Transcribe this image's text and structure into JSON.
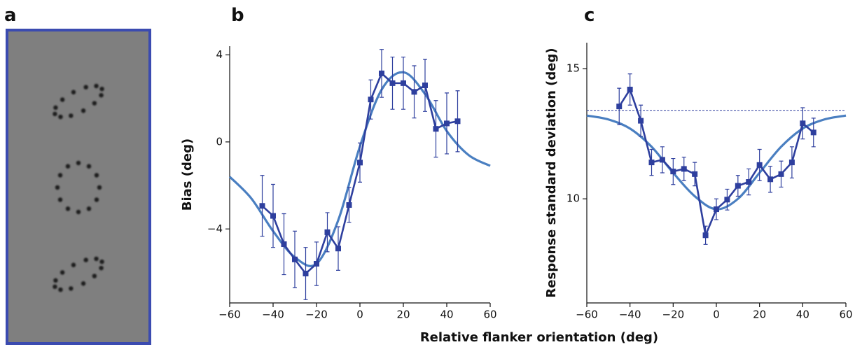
{
  "panel_labels": [
    "a",
    "b",
    "c"
  ],
  "x_label": "Relative flanker orientation (deg)",
  "chart_data": [
    {
      "type": "line",
      "y_label": "Bias (deg)",
      "xlim": [
        -60,
        60
      ],
      "xticks": [
        {
          "value": -60,
          "label": "−60"
        },
        {
          "value": -40,
          "label": "−40"
        },
        {
          "value": -20,
          "label": "−20"
        },
        0,
        20,
        40,
        60
      ],
      "ylim": [
        -7.4,
        4.4
      ],
      "yticks": [
        {
          "value": -4,
          "label": "−4"
        },
        0,
        4
      ],
      "series": [
        {
          "color": "#4a7fc1",
          "x": [
            -60,
            -50,
            -40,
            -30,
            -20,
            -10,
            0,
            10,
            20,
            30,
            40,
            50,
            60
          ],
          "values": [
            -1.6,
            -2.6,
            -4.1,
            -5.3,
            -5.6,
            -3.6,
            -0.2,
            2.4,
            3.2,
            2.2,
            0.5,
            -0.6,
            -1.1
          ]
        },
        {
          "color": "#2e3f9e",
          "markers": true,
          "x": [
            -45,
            -40,
            -35,
            -30,
            -25,
            -20,
            -15,
            -10,
            -5,
            0,
            5,
            10,
            15,
            20,
            25,
            30,
            35,
            40,
            45
          ],
          "values": [
            -2.94,
            -3.4,
            -4.7,
            -5.4,
            -6.05,
            -5.6,
            -4.15,
            -4.9,
            -2.9,
            -0.95,
            1.95,
            3.15,
            2.7,
            2.7,
            2.3,
            2.6,
            0.6,
            0.85,
            0.95
          ],
          "errors": [
            1.4,
            1.45,
            1.4,
            1.3,
            1.2,
            1.0,
            0.9,
            1.0,
            0.8,
            0.9,
            0.9,
            1.1,
            1.2,
            1.2,
            1.2,
            1.2,
            1.3,
            1.4,
            1.4
          ]
        }
      ]
    },
    {
      "type": "line",
      "y_label": "Response standard deviation (deg)",
      "xlim": [
        -60,
        60
      ],
      "xticks": [
        {
          "value": -60,
          "label": "−60"
        },
        {
          "value": -40,
          "label": "−40"
        },
        {
          "value": -20,
          "label": "−20"
        },
        0,
        20,
        40,
        60
      ],
      "ylim": [
        6,
        16
      ],
      "yticks": [
        10,
        15
      ],
      "hline": 13.4,
      "series": [
        {
          "color": "#4a7fc1",
          "x": [
            -60,
            -50,
            -40,
            -30,
            -20,
            -10,
            0,
            10,
            20,
            30,
            40,
            50,
            60
          ],
          "values": [
            13.2,
            13.05,
            12.7,
            12.0,
            11.0,
            10.1,
            9.6,
            10.0,
            11.0,
            12.0,
            12.7,
            13.05,
            13.2
          ]
        },
        {
          "color": "#2e3f9e",
          "markers": true,
          "x": [
            -45,
            -40,
            -35,
            -30,
            -25,
            -20,
            -15,
            -10,
            -5,
            0,
            5,
            10,
            15,
            20,
            25,
            30,
            35,
            40,
            45
          ],
          "values": [
            13.55,
            14.2,
            13.0,
            11.4,
            11.5,
            11.05,
            11.15,
            10.95,
            8.6,
            9.6,
            9.97,
            10.5,
            10.65,
            11.3,
            10.75,
            10.95,
            11.4,
            12.9,
            12.55
          ],
          "errors": [
            0.7,
            0.6,
            0.6,
            0.5,
            0.5,
            0.5,
            0.45,
            0.45,
            0.35,
            0.4,
            0.4,
            0.4,
            0.5,
            0.6,
            0.5,
            0.5,
            0.6,
            0.6,
            0.55
          ]
        }
      ]
    }
  ]
}
